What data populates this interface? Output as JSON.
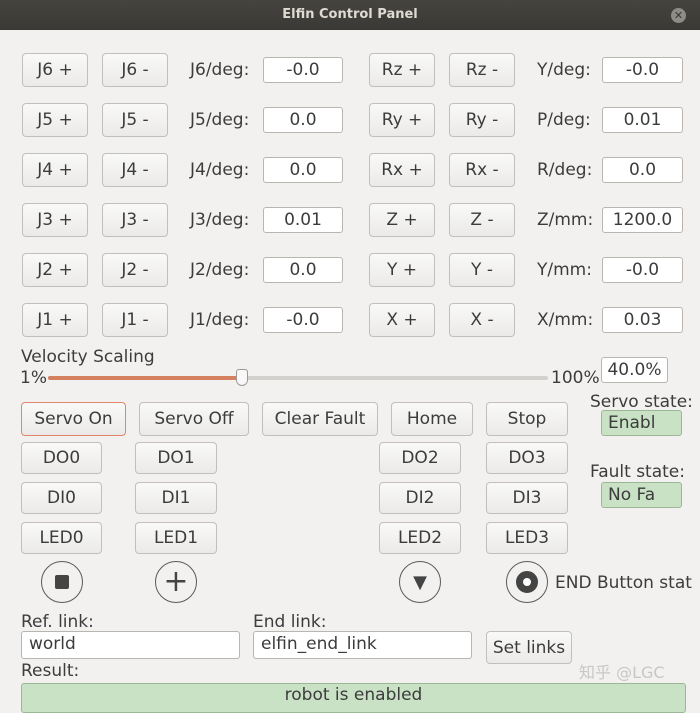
{
  "window": {
    "title": "Elfin Control Panel"
  },
  "joints": [
    {
      "plus": "J6 +",
      "minus": "J6 -",
      "label": "J6/deg:",
      "value": "-0.0"
    },
    {
      "plus": "J5 +",
      "minus": "J5 -",
      "label": "J5/deg:",
      "value": "0.0"
    },
    {
      "plus": "J4 +",
      "minus": "J4 -",
      "label": "J4/deg:",
      "value": "0.0"
    },
    {
      "plus": "J3 +",
      "minus": "J3 -",
      "label": "J3/deg:",
      "value": "0.01"
    },
    {
      "plus": "J2 +",
      "minus": "J2 -",
      "label": "J2/deg:",
      "value": "0.0"
    },
    {
      "plus": "J1 +",
      "minus": "J1 -",
      "label": "J1/deg:",
      "value": "-0.0"
    }
  ],
  "cartesian": [
    {
      "plus": "Rz +",
      "minus": "Rz -",
      "label": "Y/deg:",
      "value": "-0.0"
    },
    {
      "plus": "Ry +",
      "minus": "Ry -",
      "label": "P/deg:",
      "value": "0.01"
    },
    {
      "plus": "Rx +",
      "minus": "Rx -",
      "label": "R/deg:",
      "value": "0.0"
    },
    {
      "plus": "Z +",
      "minus": "Z -",
      "label": "Z/mm:",
      "value": "1200.0"
    },
    {
      "plus": "Y +",
      "minus": "Y -",
      "label": "Y/mm:",
      "value": "-0.0"
    },
    {
      "plus": "X +",
      "minus": "X -",
      "label": "X/mm:",
      "value": "0.03"
    }
  ],
  "velocity": {
    "label": "Velocity Scaling",
    "min": "1%",
    "max": "100%",
    "value": "40.0%",
    "percent": 40
  },
  "actions": {
    "servo_on": "Servo On",
    "servo_off": "Servo Off",
    "clear_fault": "Clear Fault",
    "home": "Home",
    "stop": "Stop"
  },
  "status": {
    "servo_label": "Servo state:",
    "servo_value": "Enabl",
    "fault_label": "Fault state:",
    "fault_value": "No Fa",
    "end_button_label": "END Button stat"
  },
  "io": {
    "do": [
      "DO0",
      "DO1",
      "DO2",
      "DO3"
    ],
    "di": [
      "DI0",
      "DI1",
      "DI2",
      "DI3"
    ],
    "led": [
      "LED0",
      "LED1",
      "LED2",
      "LED3"
    ]
  },
  "links": {
    "ref_label": "Ref. link:",
    "ref_value": "world",
    "end_label": "End link:",
    "end_value": "elfin_end_link",
    "set_button": "Set links"
  },
  "result": {
    "label": "Result:",
    "value": "robot is enabled"
  },
  "watermark": "知乎 @LGC",
  "colors": {
    "slider_fill": "#d5805f",
    "status_green": "#c9e1c5"
  }
}
